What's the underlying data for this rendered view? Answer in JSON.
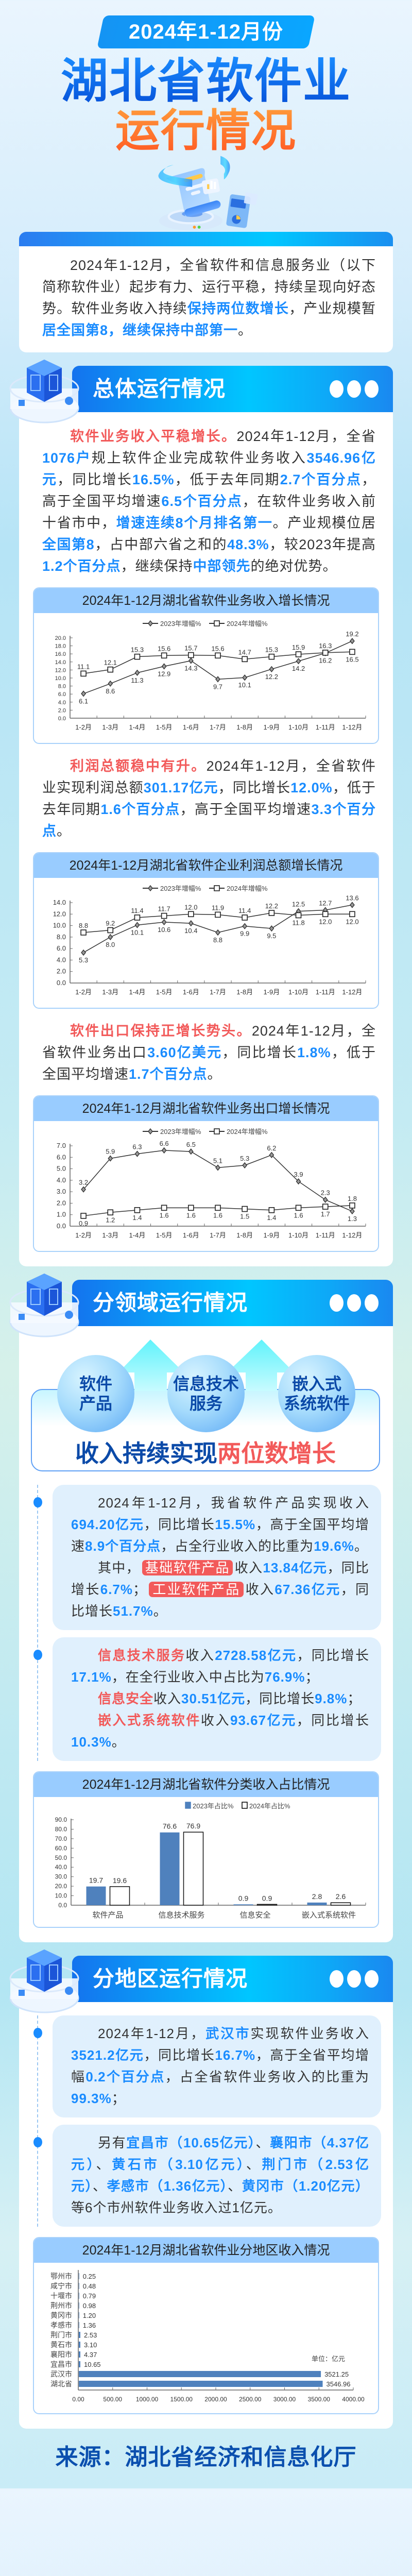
{
  "header": {
    "period": "2024年1-12月份",
    "title_line1": "湖北省软件业",
    "title_line2": "运行情况"
  },
  "intro": {
    "paragraphs": [
      [
        {
          "t": "2024年1-12月，全省软件和信息服务业（以下简称软件业）起步有力、运行平稳，持续呈现向好态势。软件业务收入持续",
          "s": "n"
        },
        {
          "t": "保持两位数增长",
          "s": "b"
        },
        {
          "t": "，产业规模暂",
          "s": "n"
        },
        {
          "t": "居全国第8，继续保持中部第一",
          "s": "b"
        },
        {
          "t": "。",
          "s": "n"
        }
      ]
    ]
  },
  "sections": [
    {
      "title": "总体运行情况",
      "icon": "server-cube-icon"
    },
    {
      "title": "分领域运行情况",
      "icon": "server-cube-icon"
    },
    {
      "title": "分地区运行情况",
      "icon": "server-cube-icon"
    }
  ],
  "overall": {
    "p_revenue": [
      [
        {
          "t": "软件业务收入平稳增长。",
          "s": "r"
        },
        {
          "t": "2024年1-12月，全省",
          "s": "n"
        },
        {
          "t": "1076户",
          "s": "b"
        },
        {
          "t": "规上软件企业完成软件业务收入",
          "s": "n"
        },
        {
          "t": "3546.96亿元",
          "s": "b"
        },
        {
          "t": "，同比增长",
          "s": "n"
        },
        {
          "t": "16.5%",
          "s": "b"
        },
        {
          "t": "，低于去年同期",
          "s": "n"
        },
        {
          "t": "2.7个百分点",
          "s": "b"
        },
        {
          "t": "，高于全国平均增速",
          "s": "n"
        },
        {
          "t": "6.5个百分点",
          "s": "b"
        },
        {
          "t": "，在软件业务收入前十省市中，",
          "s": "n"
        },
        {
          "t": "增速连续8个月排名第一",
          "s": "b"
        },
        {
          "t": "。产业规模位居",
          "s": "n"
        },
        {
          "t": "全国第8",
          "s": "b"
        },
        {
          "t": "，占中部六省之和的",
          "s": "n"
        },
        {
          "t": "48.3%",
          "s": "b"
        },
        {
          "t": "，较2023年提高",
          "s": "n"
        },
        {
          "t": "1.2个百分点",
          "s": "b"
        },
        {
          "t": "，继续保持",
          "s": "n"
        },
        {
          "t": "中部领先",
          "s": "b"
        },
        {
          "t": "的绝对优势。",
          "s": "n"
        }
      ]
    ],
    "p_profit": [
      [
        {
          "t": "利润总额稳中有升。",
          "s": "r"
        },
        {
          "t": "2024年1-12月，全省软件业实现利润总额",
          "s": "n"
        },
        {
          "t": "301.17亿元",
          "s": "b"
        },
        {
          "t": "，同比增长",
          "s": "n"
        },
        {
          "t": "12.0%",
          "s": "b"
        },
        {
          "t": "，低于去年同期",
          "s": "n"
        },
        {
          "t": "1.6个百分点",
          "s": "b"
        },
        {
          "t": "，高于全国平均增速",
          "s": "n"
        },
        {
          "t": "3.3个百分点",
          "s": "b"
        },
        {
          "t": "。",
          "s": "n"
        }
      ]
    ],
    "p_export": [
      [
        {
          "t": "软件出口保持正增长势头。",
          "s": "r"
        },
        {
          "t": "2024年1-12月，全省软件业务出口",
          "s": "n"
        },
        {
          "t": "3.60亿美元",
          "s": "b"
        },
        {
          "t": "，同比增长",
          "s": "n"
        },
        {
          "t": "1.8%",
          "s": "b"
        },
        {
          "t": "，低于全国平均增速",
          "s": "n"
        },
        {
          "t": "1.7个百分点",
          "s": "b"
        },
        {
          "t": "。",
          "s": "n"
        }
      ]
    ]
  },
  "domains": {
    "bubbles": [
      {
        "line1": "软件",
        "line2": "产品"
      },
      {
        "line1": "信息技术",
        "line2": "服务"
      },
      {
        "line1": "嵌入式",
        "line2": "系统软件"
      }
    ],
    "tagline_normal": "收入持续实现",
    "tagline_highlight": "两位数增长",
    "card1": [
      [
        {
          "t": "2024年1-12月，我省软件产品实现收入",
          "s": "n"
        },
        {
          "t": "694.20亿元",
          "s": "b"
        },
        {
          "t": "，同比增长",
          "s": "n"
        },
        {
          "t": "15.5%",
          "s": "b"
        },
        {
          "t": "，高于全国平均增速",
          "s": "n"
        },
        {
          "t": "8.9个百分点",
          "s": "b"
        },
        {
          "t": "，占全行业收入的比重为",
          "s": "n"
        },
        {
          "t": "19.6%",
          "s": "b"
        },
        {
          "t": "。",
          "s": "n"
        }
      ],
      [
        {
          "t": "其中，",
          "s": "n"
        },
        {
          "t": "基础软件产品",
          "s": "tag"
        },
        {
          "t": "收入",
          "s": "n"
        },
        {
          "t": "13.84亿元",
          "s": "b"
        },
        {
          "t": "，同比增长",
          "s": "n"
        },
        {
          "t": "6.7%",
          "s": "b"
        },
        {
          "t": "；",
          "s": "n"
        },
        {
          "t": "工业软件产品",
          "s": "tag"
        },
        {
          "t": "收入",
          "s": "n"
        },
        {
          "t": "67.36亿元",
          "s": "b"
        },
        {
          "t": "，同比增长",
          "s": "n"
        },
        {
          "t": "51.7%",
          "s": "b"
        },
        {
          "t": "。",
          "s": "n"
        }
      ]
    ],
    "card2": [
      [
        {
          "t": "信息技术服务",
          "s": "r"
        },
        {
          "t": "收入",
          "s": "n"
        },
        {
          "t": "2728.58亿元",
          "s": "b"
        },
        {
          "t": "，同比增长",
          "s": "n"
        },
        {
          "t": "17.1%",
          "s": "b"
        },
        {
          "t": "，在全行业收入中占比为",
          "s": "n"
        },
        {
          "t": "76.9%",
          "s": "b"
        },
        {
          "t": "；",
          "s": "n"
        }
      ],
      [
        {
          "t": "信息安全",
          "s": "r"
        },
        {
          "t": "收入",
          "s": "n"
        },
        {
          "t": "30.51亿元",
          "s": "b"
        },
        {
          "t": "，同比增长",
          "s": "n"
        },
        {
          "t": "9.8%",
          "s": "b"
        },
        {
          "t": "；",
          "s": "n"
        }
      ],
      [
        {
          "t": "嵌入式系统软件",
          "s": "r"
        },
        {
          "t": "收入",
          "s": "n"
        },
        {
          "t": "93.67亿元",
          "s": "b"
        },
        {
          "t": "，同比增长",
          "s": "n"
        },
        {
          "t": "10.3%",
          "s": "b"
        },
        {
          "t": "。",
          "s": "n"
        }
      ]
    ]
  },
  "regions": {
    "card1": [
      [
        {
          "t": "2024年1-12月，",
          "s": "n"
        },
        {
          "t": "武汉市",
          "s": "b"
        },
        {
          "t": "实现软件业务收入",
          "s": "n"
        },
        {
          "t": "3521.2亿元",
          "s": "b"
        },
        {
          "t": "，同比增长",
          "s": "n"
        },
        {
          "t": "16.7%",
          "s": "b"
        },
        {
          "t": "，高于全省平均增幅",
          "s": "n"
        },
        {
          "t": "0.2个百分点",
          "s": "b"
        },
        {
          "t": "，占全省软件业务收入的比重为",
          "s": "n"
        },
        {
          "t": "99.3%",
          "s": "b"
        },
        {
          "t": "；",
          "s": "n"
        }
      ]
    ],
    "card2": [
      [
        {
          "t": "另有",
          "s": "n"
        },
        {
          "t": "宜昌市（10.65亿元）",
          "s": "b"
        },
        {
          "t": "、",
          "s": "n"
        },
        {
          "t": "襄阳市（4.37亿元）",
          "s": "b"
        },
        {
          "t": "、",
          "s": "n"
        },
        {
          "t": "黄石市（3.10亿元）",
          "s": "b"
        },
        {
          "t": "、",
          "s": "n"
        },
        {
          "t": "荆门市（2.53亿元）",
          "s": "b"
        },
        {
          "t": "、",
          "s": "n"
        },
        {
          "t": "孝感市（1.36亿元）",
          "s": "b"
        },
        {
          "t": "、",
          "s": "n"
        },
        {
          "t": "黄冈市（1.20亿元）",
          "s": "b"
        },
        {
          "t": "等6个市州软件业务收入过1亿元。",
          "s": "n"
        }
      ]
    ]
  },
  "footer": {
    "source": "来源：湖北省经济和信息化厅"
  },
  "colors": {
    "accent_blue": "#1a8cff",
    "highlight_red": "#f25a5a",
    "header_gradient": [
      "#1473ee",
      "#00c6ff",
      "#1a88f0"
    ],
    "chart_header": "#99ccff",
    "bar_2023": "#4f81bd",
    "footer_text": "#0a4fae"
  },
  "chart_data": [
    {
      "type": "line",
      "title": "2024年1-12月湖北省软件业务收入增长情况",
      "categories": [
        "1-2月",
        "1-3月",
        "1-4月",
        "1-5月",
        "1-6月",
        "1-7月",
        "1-8月",
        "1-9月",
        "1-10月",
        "1-11月",
        "1-12月"
      ],
      "series": [
        {
          "name": "2023年增幅%",
          "marker": "diamond",
          "values": [
            6.1,
            8.6,
            11.3,
            12.9,
            14.3,
            9.7,
            10.1,
            12.2,
            14.2,
            16.2,
            19.2
          ]
        },
        {
          "name": "2024年增幅%",
          "marker": "square",
          "values": [
            11.1,
            12.1,
            15.3,
            15.6,
            15.7,
            15.6,
            14.7,
            15.3,
            15.9,
            16.3,
            16.5
          ]
        }
      ],
      "ylim": [
        0,
        20
      ],
      "yticks": [
        "0.0",
        "2.0",
        "4.0",
        "6.0",
        "8.0",
        "10.0",
        "12.0",
        "14.0",
        "16.0",
        "18.0",
        "20.0"
      ],
      "legend": "top-center",
      "grid": false
    },
    {
      "type": "line",
      "title": "2024年1-12月湖北省软件企业利润总额增长情况",
      "categories": [
        "1-2月",
        "1-3月",
        "1-4月",
        "1-5月",
        "1-6月",
        "1-7月",
        "1-8月",
        "1-9月",
        "1-10月",
        "1-11月",
        "1-12月"
      ],
      "series": [
        {
          "name": "2023年增幅%",
          "marker": "diamond",
          "values": [
            5.3,
            8.0,
            10.1,
            10.6,
            10.4,
            8.8,
            9.9,
            9.5,
            12.5,
            12.7,
            13.6
          ]
        },
        {
          "name": "2024年增幅%",
          "marker": "square",
          "values": [
            8.8,
            9.2,
            11.4,
            11.7,
            12.0,
            11.9,
            11.4,
            12.2,
            11.8,
            12.0,
            12.0
          ]
        }
      ],
      "ylim": [
        0,
        14
      ],
      "yticks": [
        "0.0",
        "2.0",
        "4.0",
        "6.0",
        "8.0",
        "10.0",
        "12.0",
        "14.0"
      ],
      "legend": "top-center",
      "grid": false
    },
    {
      "type": "line",
      "title": "2024年1-12月湖北省软件业务出口增长情况",
      "categories": [
        "1-2月",
        "1-3月",
        "1-4月",
        "1-5月",
        "1-6月",
        "1-7月",
        "1-8月",
        "1-9月",
        "1-10月",
        "1-11月",
        "1-12月"
      ],
      "series": [
        {
          "name": "2023年增幅%",
          "marker": "diamond",
          "values": [
            3.2,
            5.9,
            6.3,
            6.6,
            6.5,
            5.1,
            5.3,
            6.2,
            3.9,
            2.3,
            1.3
          ]
        },
        {
          "name": "2024年增幅%",
          "marker": "square",
          "values": [
            0.9,
            1.2,
            1.4,
            1.6,
            1.6,
            1.6,
            1.5,
            1.4,
            1.6,
            1.7,
            1.8
          ]
        }
      ],
      "ylim": [
        0,
        7
      ],
      "yticks": [
        "0.0",
        "1.0",
        "2.0",
        "3.0",
        "4.0",
        "5.0",
        "6.0",
        "7.0"
      ],
      "legend": "top-center",
      "grid": false
    },
    {
      "type": "bar",
      "title": "2024年1-12月湖北省软件分类收入占比情况",
      "categories": [
        "软件产品",
        "信息技术服务",
        "信息安全",
        "嵌入式系统软件"
      ],
      "series": [
        {
          "name": "2023年占比%",
          "color": "#4f81bd",
          "values": [
            19.7,
            76.6,
            0.9,
            2.8
          ]
        },
        {
          "name": "2024年占比%",
          "color": "#ffffff",
          "values": [
            19.6,
            76.9,
            0.9,
            2.6
          ]
        }
      ],
      "ylim": [
        0,
        90
      ],
      "yticks": [
        "0.0",
        "10.0",
        "20.0",
        "30.0",
        "40.0",
        "50.0",
        "60.0",
        "70.0",
        "80.0",
        "90.0"
      ],
      "legend": "top-center",
      "grid": false
    },
    {
      "type": "bar",
      "orientation": "horizontal",
      "title": "2024年1-12月湖北省软件业分地区收入情况",
      "unit": "单位：亿元",
      "categories": [
        "鄂州市",
        "咸宁市",
        "十堰市",
        "荆州市",
        "黄冈市",
        "孝感市",
        "荆门市",
        "黄石市",
        "襄阳市",
        "宜昌市",
        "武汉市",
        "湖北省"
      ],
      "values": [
        0.25,
        0.48,
        0.79,
        0.98,
        1.2,
        1.36,
        2.53,
        3.1,
        4.37,
        10.65,
        3521.25,
        3546.96
      ],
      "xlim": [
        0,
        4000
      ],
      "xticks": [
        "0.00",
        "500.00",
        "1000.00",
        "1500.00",
        "2000.00",
        "2500.00",
        "3000.00",
        "3500.00",
        "4000.00"
      ],
      "color": "#4f81bd",
      "grid": false
    }
  ]
}
